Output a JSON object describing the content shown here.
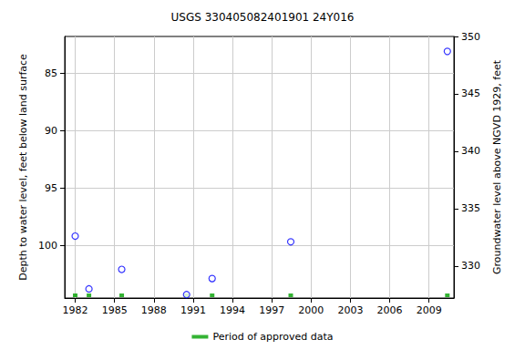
{
  "chart_data": {
    "type": "scatter",
    "title": "USGS 330405082401901 24Y016",
    "ylabel": "Depth to water level, feet below land surface",
    "y2label": "Groundwater level above NGVD 1929, feet",
    "x": [
      1982.0,
      1983.05,
      1985.55,
      1990.5,
      1992.45,
      1998.45,
      2010.4
    ],
    "values": [
      99.2,
      103.8,
      102.1,
      104.3,
      102.9,
      99.7,
      83.1
    ],
    "color": "#0000ff",
    "marker": "circle",
    "approved": {
      "name": "Period of approved data",
      "color": "#00a000",
      "x": [
        1982.0,
        1983.05,
        1985.55,
        1990.5,
        1992.45,
        1998.45,
        2010.4
      ]
    },
    "xlim": [
      1981.2,
      2010.9
    ],
    "xticks": [
      1982,
      1985,
      1988,
      1991,
      1994,
      1997,
      2000,
      2003,
      2006,
      2009
    ],
    "ylim": [
      81.8,
      104.6
    ],
    "yticks": [
      85,
      90,
      95,
      100
    ],
    "y2lim": [
      327.2,
      350.0
    ],
    "y2ticks": [
      330,
      335,
      340,
      345,
      350
    ],
    "grid": true,
    "legend": "bottom"
  }
}
